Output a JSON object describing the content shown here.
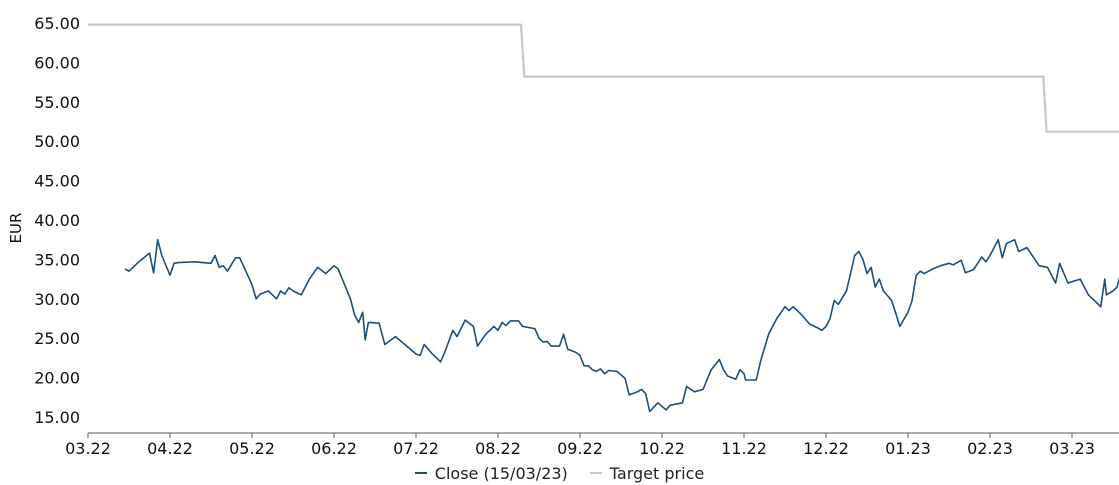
{
  "chart_data": {
    "type": "line",
    "title": "",
    "xlabel": "",
    "ylabel": "EUR",
    "ylim": [
      13.5,
      67
    ],
    "yticks": [
      "15.00",
      "20.00",
      "25.00",
      "30.00",
      "35.00",
      "40.00",
      "45.00",
      "50.00",
      "55.00",
      "60.00",
      "65.00"
    ],
    "xticks": [
      "03.22",
      "04.22",
      "05.22",
      "06.22",
      "07.22",
      "08.22",
      "09.22",
      "10.22",
      "11.22",
      "12.22",
      "01.23",
      "02.23",
      "03.23"
    ],
    "grid": false,
    "legend_position": "bottom",
    "colors": {
      "close": "#1f4e79",
      "target": "#c8c8c8",
      "axis": "#555555"
    },
    "series": [
      {
        "name": "Close (15/03/23)",
        "points": [
          [
            0.45,
            33.8
          ],
          [
            0.5,
            33.5
          ],
          [
            0.6,
            34.5
          ],
          [
            0.75,
            35.8
          ],
          [
            0.8,
            33.3
          ],
          [
            0.85,
            37.5
          ],
          [
            0.9,
            35.5
          ],
          [
            1.0,
            33.0
          ],
          [
            1.05,
            34.5
          ],
          [
            1.1,
            34.6
          ],
          [
            1.3,
            34.7
          ],
          [
            1.5,
            34.5
          ],
          [
            1.55,
            35.5
          ],
          [
            1.6,
            34.0
          ],
          [
            1.65,
            34.2
          ],
          [
            1.7,
            33.5
          ],
          [
            1.8,
            35.2
          ],
          [
            1.85,
            35.2
          ],
          [
            2.0,
            31.8
          ],
          [
            2.05,
            30.0
          ],
          [
            2.1,
            30.6
          ],
          [
            2.2,
            31.0
          ],
          [
            2.25,
            30.5
          ],
          [
            2.3,
            30.0
          ],
          [
            2.35,
            31.0
          ],
          [
            2.4,
            30.6
          ],
          [
            2.45,
            31.4
          ],
          [
            2.5,
            31.0
          ],
          [
            2.6,
            30.5
          ],
          [
            2.7,
            32.5
          ],
          [
            2.8,
            34.0
          ],
          [
            2.9,
            33.2
          ],
          [
            3.0,
            34.2
          ],
          [
            3.05,
            33.8
          ],
          [
            3.2,
            30.0
          ],
          [
            3.25,
            28.0
          ],
          [
            3.3,
            27.0
          ],
          [
            3.35,
            28.3
          ],
          [
            3.38,
            24.8
          ],
          [
            3.42,
            27.0
          ],
          [
            3.55,
            26.9
          ],
          [
            3.62,
            24.2
          ],
          [
            3.75,
            25.2
          ],
          [
            4.0,
            23.0
          ],
          [
            4.05,
            22.8
          ],
          [
            4.1,
            24.2
          ],
          [
            4.2,
            23.0
          ],
          [
            4.3,
            22.0
          ],
          [
            4.35,
            23.2
          ],
          [
            4.45,
            26.0
          ],
          [
            4.5,
            25.2
          ],
          [
            4.6,
            27.3
          ],
          [
            4.7,
            26.5
          ],
          [
            4.75,
            24.0
          ],
          [
            4.85,
            25.5
          ],
          [
            4.95,
            26.5
          ],
          [
            5.0,
            26.0
          ],
          [
            5.05,
            27.0
          ],
          [
            5.1,
            26.6
          ],
          [
            5.15,
            27.2
          ],
          [
            5.25,
            27.2
          ],
          [
            5.3,
            26.5
          ],
          [
            5.45,
            26.2
          ],
          [
            5.5,
            25.0
          ],
          [
            5.55,
            24.5
          ],
          [
            5.6,
            24.6
          ],
          [
            5.65,
            24.0
          ],
          [
            5.75,
            24.0
          ],
          [
            5.8,
            25.5
          ],
          [
            5.85,
            23.6
          ],
          [
            5.95,
            23.2
          ],
          [
            6.0,
            22.8
          ],
          [
            6.05,
            21.5
          ],
          [
            6.1,
            21.5
          ],
          [
            6.15,
            21.0
          ],
          [
            6.2,
            20.8
          ],
          [
            6.25,
            21.1
          ],
          [
            6.3,
            20.5
          ],
          [
            6.35,
            20.9
          ],
          [
            6.45,
            20.8
          ],
          [
            6.55,
            19.9
          ],
          [
            6.6,
            17.8
          ],
          [
            6.7,
            18.2
          ],
          [
            6.75,
            18.5
          ],
          [
            6.8,
            18.0
          ],
          [
            6.85,
            15.7
          ],
          [
            6.95,
            16.8
          ],
          [
            7.05,
            15.9
          ],
          [
            7.1,
            16.5
          ],
          [
            7.25,
            16.8
          ],
          [
            7.3,
            18.9
          ],
          [
            7.35,
            18.5
          ],
          [
            7.4,
            18.2
          ],
          [
            7.5,
            18.5
          ],
          [
            7.6,
            21.0
          ],
          [
            7.7,
            22.3
          ],
          [
            7.75,
            21.0
          ],
          [
            7.8,
            20.2
          ],
          [
            7.9,
            19.8
          ],
          [
            7.95,
            21.0
          ],
          [
            8.0,
            20.5
          ],
          [
            8.02,
            19.7
          ],
          [
            8.15,
            19.7
          ],
          [
            8.2,
            22.0
          ],
          [
            8.3,
            25.5
          ],
          [
            8.4,
            27.5
          ],
          [
            8.5,
            29.0
          ],
          [
            8.55,
            28.5
          ],
          [
            8.6,
            29.0
          ],
          [
            8.7,
            28.0
          ],
          [
            8.8,
            26.8
          ],
          [
            8.9,
            26.3
          ],
          [
            8.95,
            26.0
          ],
          [
            9.0,
            26.5
          ],
          [
            9.05,
            27.5
          ],
          [
            9.1,
            29.8
          ],
          [
            9.15,
            29.3
          ],
          [
            9.25,
            31.0
          ],
          [
            9.35,
            35.5
          ],
          [
            9.4,
            36.0
          ],
          [
            9.45,
            35.0
          ],
          [
            9.5,
            33.2
          ],
          [
            9.55,
            34.0
          ],
          [
            9.6,
            31.5
          ],
          [
            9.65,
            32.5
          ],
          [
            9.7,
            31.0
          ],
          [
            9.8,
            29.8
          ],
          [
            9.85,
            28.2
          ],
          [
            9.9,
            26.5
          ],
          [
            10.0,
            28.3
          ],
          [
            10.05,
            29.8
          ],
          [
            10.1,
            33.0
          ],
          [
            10.15,
            33.5
          ],
          [
            10.2,
            33.2
          ],
          [
            10.3,
            33.8
          ],
          [
            10.4,
            34.2
          ],
          [
            10.5,
            34.5
          ],
          [
            10.55,
            34.3
          ],
          [
            10.65,
            34.9
          ],
          [
            10.7,
            33.3
          ],
          [
            10.8,
            33.7
          ],
          [
            10.85,
            34.5
          ],
          [
            10.9,
            35.3
          ],
          [
            10.95,
            34.7
          ],
          [
            11.0,
            35.5
          ],
          [
            11.1,
            37.5
          ],
          [
            11.15,
            35.2
          ],
          [
            11.2,
            37.0
          ],
          [
            11.3,
            37.5
          ],
          [
            11.35,
            36.0
          ],
          [
            11.45,
            36.5
          ],
          [
            11.6,
            34.2
          ],
          [
            11.7,
            34.0
          ],
          [
            11.8,
            32.0
          ],
          [
            11.85,
            34.5
          ],
          [
            11.95,
            32.0
          ],
          [
            12.1,
            32.5
          ],
          [
            12.2,
            30.5
          ],
          [
            12.25,
            30.0
          ],
          [
            12.3,
            29.5
          ],
          [
            12.35,
            29.0
          ],
          [
            12.4,
            32.5
          ],
          [
            12.42,
            30.5
          ],
          [
            12.5,
            31.0
          ],
          [
            12.55,
            31.5
          ],
          [
            12.6,
            33.5
          ],
          [
            12.7,
            34.2
          ],
          [
            12.8,
            34.5
          ],
          [
            12.85,
            33.8
          ],
          [
            12.9,
            32.0
          ],
          [
            12.95,
            31.0
          ],
          [
            13.0,
            29.8
          ],
          [
            13.05,
            31.5
          ],
          [
            13.1,
            30.5
          ]
        ]
      },
      {
        "name": "Target price",
        "points": [
          [
            0.0,
            64.8
          ],
          [
            5.28,
            64.8
          ],
          [
            5.32,
            58.2
          ],
          [
            11.65,
            58.2
          ],
          [
            11.69,
            51.2
          ],
          [
            13.25,
            51.2
          ]
        ]
      }
    ]
  }
}
